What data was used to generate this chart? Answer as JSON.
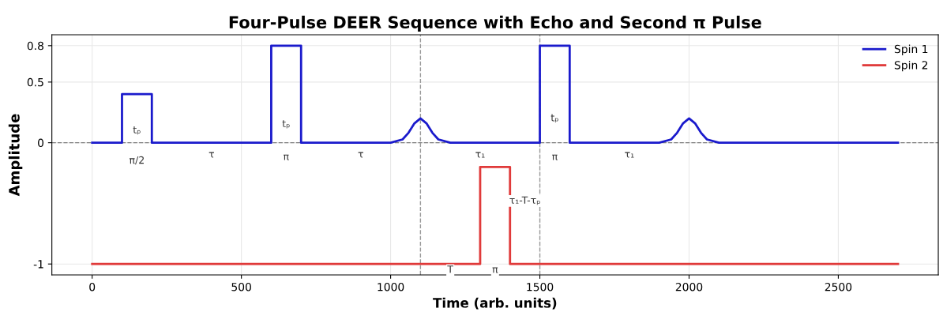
{
  "chart_data": {
    "type": "line",
    "title": "Four-Pulse DEER Sequence with Echo and Second π Pulse",
    "xlabel": "Time (arb. units)",
    "ylabel": "Amplitude",
    "series": [
      {
        "name": "Spin 1",
        "color": "#1a1acc",
        "x": [
          0,
          100,
          100,
          200,
          200,
          600,
          600,
          700,
          700,
          1000,
          1040,
          1060,
          1080,
          1100,
          1120,
          1140,
          1160,
          1200,
          1500,
          1500,
          1600,
          1600,
          1900,
          1940,
          1960,
          1980,
          2000,
          2020,
          2040,
          2060,
          2100,
          2700
        ],
        "values": [
          0,
          0,
          0.4,
          0.4,
          0,
          0,
          0.8,
          0.8,
          0,
          0,
          0.027,
          0.082,
          0.16,
          0.2,
          0.16,
          0.082,
          0.027,
          0,
          0,
          0.8,
          0.8,
          0,
          0,
          0.027,
          0.082,
          0.16,
          0.2,
          0.16,
          0.082,
          0.027,
          0,
          0
        ]
      },
      {
        "name": "Spin 2",
        "color": "#e03a3a",
        "x": [
          0,
          1300,
          1300,
          1400,
          1400,
          2700
        ],
        "values": [
          -1,
          -1,
          -0.2,
          -0.2,
          -1,
          -1
        ]
      }
    ],
    "xlim": [
      -135,
      2835
    ],
    "ylim": [
      -1.09,
      0.89
    ],
    "xticks": [
      0,
      500,
      1000,
      1500,
      2000,
      2500
    ],
    "yticks": [
      -1,
      0,
      0.5,
      0.8
    ],
    "ref_lines": [
      {
        "axis": "y",
        "value": 0,
        "color": "#808080",
        "line_style": "dashed"
      },
      {
        "axis": "x",
        "value": 1100,
        "color": "#999999",
        "line_style": "dashed"
      },
      {
        "axis": "x",
        "value": 1500,
        "color": "#999999",
        "line_style": "dashed"
      }
    ],
    "annotations": [
      {
        "text": "tₚ",
        "x": 150,
        "y": 0.1
      },
      {
        "text": "tₚ",
        "x": 650,
        "y": 0.15
      },
      {
        "text": "tₚ",
        "x": 1550,
        "y": 0.2
      },
      {
        "text": "π/2",
        "x": 150,
        "y": -0.15
      },
      {
        "text": "τ",
        "x": 400,
        "y": -0.1
      },
      {
        "text": "π",
        "x": 650,
        "y": -0.12
      },
      {
        "text": "τ",
        "x": 900,
        "y": -0.1
      },
      {
        "text": "τ₁",
        "x": 1300,
        "y": -0.1
      },
      {
        "text": "π",
        "x": 1550,
        "y": -0.12
      },
      {
        "text": "τ₁",
        "x": 1800,
        "y": -0.1
      },
      {
        "text": "τ₁-T-τₚ",
        "x": 1450,
        "y": -0.48
      },
      {
        "text": "T",
        "x": 1200,
        "y": -1.05
      },
      {
        "text": "π",
        "x": 1350,
        "y": -1.05
      }
    ],
    "grid": true,
    "legend": "top right",
    "line_style": "solid",
    "marker": "none"
  }
}
